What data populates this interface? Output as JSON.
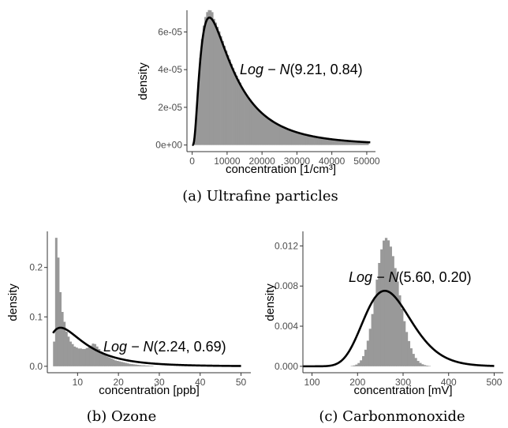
{
  "chart_data": [
    {
      "id": "ufp",
      "type": "histogram",
      "caption": "(a) Ultrafine particles",
      "xlabel": "concentration [1/cm³]",
      "ylabel": "density",
      "xlim": [
        -1500,
        52500
      ],
      "ylim": [
        -3.5e-06,
        7.15e-05
      ],
      "xticks": [
        0,
        10000,
        20000,
        30000,
        40000,
        50000
      ],
      "xtick_labels": [
        "0",
        "10000",
        "20000",
        "30000",
        "40000",
        "50000"
      ],
      "yticks": [
        0,
        2e-05,
        4e-05,
        6e-05
      ],
      "ytick_labels": [
        "0e+00",
        "2e-05",
        "4e-05",
        "6e-05"
      ],
      "hist": {
        "bin_width": 500,
        "xmin": 0,
        "xmax": 50500
      },
      "fit": {
        "dist": "lognormal",
        "mu": 9.21,
        "sigma": 0.84,
        "label_dist": "Log − N",
        "label_params": "(9.21, 0.84)",
        "label_at": [
          25000,
          4.5e-05
        ]
      },
      "grid": false
    },
    {
      "id": "ozone",
      "type": "histogram",
      "caption": "(b) Ozone",
      "xlabel": "concentration [ppb]",
      "ylabel": "density",
      "xlim": [
        2.6,
        52.4
      ],
      "ylim": [
        -0.013,
        0.273
      ],
      "xticks": [
        10,
        20,
        30,
        40,
        50
      ],
      "xtick_labels": [
        "10",
        "20",
        "30",
        "40",
        "50"
      ],
      "yticks": [
        0,
        0.1,
        0.2
      ],
      "ytick_labels": [
        "0.0",
        "0.1",
        "0.2"
      ],
      "hist": {
        "bin_width": 0.5,
        "bins": [
          [
            4.0,
            0.05
          ],
          [
            4.5,
            0.26
          ],
          [
            5.0,
            0.22
          ],
          [
            5.5,
            0.15
          ],
          [
            6.0,
            0.11
          ],
          [
            6.5,
            0.09
          ],
          [
            7.0,
            0.07
          ],
          [
            7.5,
            0.06
          ],
          [
            8.0,
            0.05
          ],
          [
            8.5,
            0.045
          ],
          [
            9.0,
            0.04
          ],
          [
            9.5,
            0.038
          ],
          [
            10.0,
            0.036
          ],
          [
            10.5,
            0.036
          ],
          [
            11.0,
            0.035
          ],
          [
            11.5,
            0.035
          ],
          [
            12.0,
            0.037
          ],
          [
            12.5,
            0.038
          ],
          [
            13.0,
            0.042
          ],
          [
            13.5,
            0.046
          ],
          [
            14.0,
            0.045
          ],
          [
            14.5,
            0.04
          ],
          [
            15.0,
            0.035
          ],
          [
            15.5,
            0.03
          ],
          [
            16.0,
            0.026
          ],
          [
            16.5,
            0.023
          ],
          [
            17.0,
            0.02
          ],
          [
            17.5,
            0.018
          ],
          [
            18.0,
            0.016
          ],
          [
            18.5,
            0.014
          ],
          [
            19.0,
            0.012
          ],
          [
            19.5,
            0.011
          ],
          [
            20.0,
            0.01
          ],
          [
            20.5,
            0.009
          ],
          [
            21.0,
            0.008
          ],
          [
            21.5,
            0.007
          ],
          [
            22.0,
            0.006
          ],
          [
            22.5,
            0.005
          ],
          [
            23.0,
            0.0045
          ],
          [
            23.5,
            0.004
          ],
          [
            24.0,
            0.0035
          ],
          [
            24.5,
            0.003
          ],
          [
            25.0,
            0.0025
          ],
          [
            25.5,
            0.002
          ],
          [
            26.0,
            0.002
          ],
          [
            26.5,
            0.0015
          ],
          [
            27.0,
            0.0015
          ],
          [
            27.5,
            0.001
          ],
          [
            28.0,
            0.001
          ]
        ]
      },
      "fit": {
        "dist": "lognormal",
        "mu": 2.24,
        "sigma": 0.69,
        "xfrom": 4,
        "label_dist": "Log − N",
        "label_params": "(2.24, 0.69)",
        "label_at": [
          14,
          0.055
        ]
      },
      "grid": false
    },
    {
      "id": "co",
      "type": "histogram",
      "caption": "(c) Carbonmonoxide",
      "xlabel": "concentration [mV]",
      "ylabel": "density",
      "xlim": [
        80,
        520
      ],
      "ylim": [
        -0.00064,
        0.01345
      ],
      "xticks": [
        100,
        200,
        300,
        400,
        500
      ],
      "xtick_labels": [
        "100",
        "200",
        "300",
        "400",
        "500"
      ],
      "yticks": [
        0,
        0.004,
        0.008,
        0.012
      ],
      "ytick_labels": [
        "0.000",
        "0.004",
        "0.008",
        "0.012"
      ],
      "hist": {
        "bin_width": 5,
        "xmin": 100,
        "xmax": 500,
        "peak_x": 262,
        "peak_y": 0.0128,
        "sd_left": 22,
        "sd_right": 28
      },
      "fit": {
        "dist": "lognormal",
        "mu": 5.6,
        "sigma": 0.2,
        "label_dist": "Log − N",
        "label_params": "(5.60, 0.20)",
        "label_at": [
          195,
          0.0087
        ]
      },
      "grid": false
    }
  ],
  "colors": {
    "bars": "#999999",
    "fit_line": "#000000",
    "axis": "#333333"
  }
}
